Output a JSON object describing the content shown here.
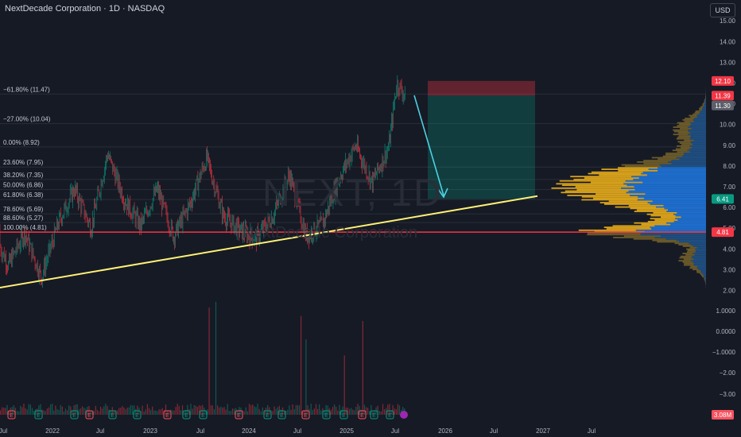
{
  "header": {
    "title": "NextDecade Corporation · 1D · NASDAQ",
    "currency": "USD"
  },
  "watermark": {
    "symbol": "NEXT, 1D",
    "name": "NextDecade Corporation"
  },
  "price_axis": {
    "ticks": [
      "15.00",
      "14.00",
      "13.00",
      "12.00",
      "11.00",
      "10.00",
      "9.00",
      "8.00",
      "7.00",
      "6.00",
      "5.00",
      "4.00",
      "3.00",
      "2.00",
      "1.0000",
      "0.0000",
      "−1.0000",
      "−2.00",
      "−3.00"
    ],
    "labels": [
      {
        "text": "12.10",
        "color": "#f23645"
      },
      {
        "text": "11.39",
        "color": "#f23645"
      },
      {
        "text": "11.30",
        "color": "#5d606b"
      },
      {
        "text": "6.41",
        "color": "#089981"
      },
      {
        "text": "4.81",
        "color": "#f23645"
      },
      {
        "text": "3.08M",
        "color": "#f7525f"
      }
    ]
  },
  "time_axis": {
    "ticks": [
      "Jul",
      "2022",
      "Jul",
      "2023",
      "Jul",
      "2024",
      "Jul",
      "2025",
      "Jul",
      "2026",
      "Jul",
      "2027",
      "Jul"
    ]
  },
  "fib_levels": [
    {
      "label": "−61.80% (11.47)",
      "price": 11.47
    },
    {
      "label": "−27.00% (10.04)",
      "price": 10.04
    },
    {
      "label": "0.00% (8.92)",
      "price": 8.92
    },
    {
      "label": "23.60% (7.95)",
      "price": 7.95
    },
    {
      "label": "38.20% (7.35)",
      "price": 7.35
    },
    {
      "label": "50.00% (6.86)",
      "price": 6.86
    },
    {
      "label": "61.80% (6.38)",
      "price": 6.38
    },
    {
      "label": "78.60% (5.69)",
      "price": 5.69
    },
    {
      "label": "88.60% (5.27)",
      "price": 5.27
    },
    {
      "label": "100.00% (4.81)",
      "price": 4.81
    }
  ],
  "events": [
    "E",
    "E",
    "E",
    "E",
    "E",
    "E",
    "E",
    "E",
    "E",
    "E",
    "E",
    "E",
    "E",
    "E",
    "E",
    "E",
    "E",
    "E",
    "E",
    "E",
    "E",
    "E",
    "E"
  ],
  "colors": {
    "background": "#161a25",
    "up": "#089981",
    "down": "#f23645",
    "support_line": "#f23645",
    "trendline": "#fff176",
    "arrow": "#4dd0e1",
    "profile_orange": "#d9a21b",
    "profile_blue": "#2962ff"
  },
  "chart_data": {
    "type": "candlestick",
    "symbol": "NEXT",
    "interval": "1D",
    "ylim": [
      1.5,
      15.5
    ],
    "support_level": 4.81,
    "short_position": {
      "entry": 11.39,
      "stop": 12.1,
      "target": 6.41
    },
    "trendline": {
      "from": [
        "2021-05",
        2.0
      ],
      "to": [
        "2026-12",
        6.55
      ]
    },
    "approx_price_path": [
      [
        "2021-06",
        5.0
      ],
      [
        "2021-08",
        3.2
      ],
      [
        "2021-10",
        4.8
      ],
      [
        "2021-12",
        2.6
      ],
      [
        "2022-02",
        5.2
      ],
      [
        "2022-04",
        6.9
      ],
      [
        "2022-06",
        5.0
      ],
      [
        "2022-08",
        8.6
      ],
      [
        "2022-10",
        6.4
      ],
      [
        "2022-12",
        5.1
      ],
      [
        "2023-02",
        6.9
      ],
      [
        "2023-04",
        4.6
      ],
      [
        "2023-06",
        6.2
      ],
      [
        "2023-08",
        8.4
      ],
      [
        "2023-10",
        5.6
      ],
      [
        "2023-12",
        4.9
      ],
      [
        "2024-02",
        4.5
      ],
      [
        "2024-04",
        5.6
      ],
      [
        "2024-06",
        7.6
      ],
      [
        "2024-08",
        4.6
      ],
      [
        "2024-10",
        5.2
      ],
      [
        "2024-12",
        7.4
      ],
      [
        "2025-02",
        9.0
      ],
      [
        "2025-04",
        7.2
      ],
      [
        "2025-06",
        8.9
      ],
      [
        "2025-07",
        12.0
      ],
      [
        "2025-08",
        11.4
      ]
    ],
    "volume_last": "3.08M"
  }
}
